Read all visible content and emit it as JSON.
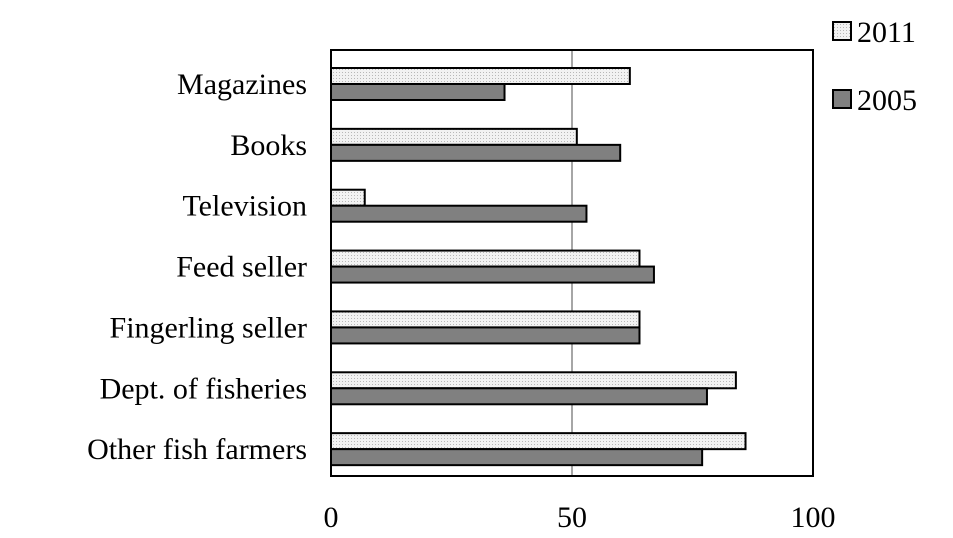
{
  "chart_data": {
    "type": "bar",
    "orientation": "horizontal",
    "categories": [
      "Magazines",
      "Books",
      "Television",
      "Feed seller",
      "Fingerling seller",
      "Dept. of fisheries",
      "Other fish farmers"
    ],
    "series": [
      {
        "name": "2011",
        "color": "#e6e6e6",
        "pattern": "light-dotted",
        "values": [
          62,
          51,
          7,
          64,
          64,
          84,
          86
        ]
      },
      {
        "name": "2005",
        "color": "#808080",
        "pattern": "solid-dark",
        "values": [
          36,
          60,
          53,
          67,
          64,
          78,
          77
        ]
      }
    ],
    "title": "",
    "xlabel": "",
    "ylabel": "",
    "xlim": [
      0,
      100
    ],
    "xticks": [
      "0",
      "50",
      "100"
    ],
    "grid": "vertical line at 50",
    "legend": {
      "placement": "top-right"
    }
  }
}
